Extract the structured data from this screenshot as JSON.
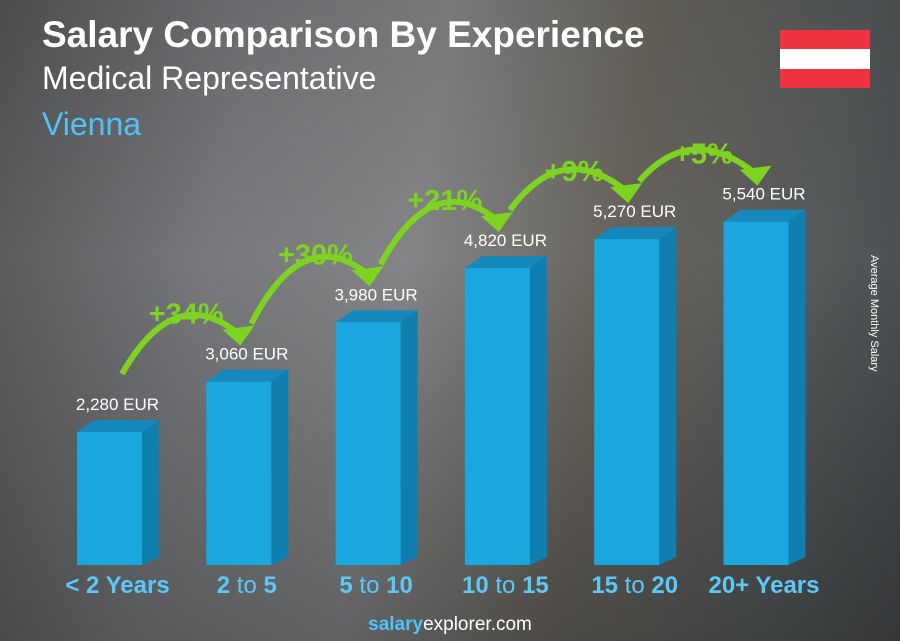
{
  "header": {
    "title": "Salary Comparison By Experience",
    "subtitle": "Medical Representative",
    "city": "Vienna"
  },
  "flag": {
    "colors": [
      "#ef3340",
      "#ffffff",
      "#ef3340"
    ]
  },
  "footer": {
    "brand_bold": "salary",
    "brand_rest": "explorer",
    "tld": ".com"
  },
  "chart_data": {
    "type": "bar",
    "ylabel": "Average Monthly Salary",
    "categories": [
      "< 2 Years",
      "2 to 5",
      "5 to 10",
      "10 to 15",
      "15 to 20",
      "20+ Years"
    ],
    "values": [
      2280,
      3060,
      3980,
      4820,
      5270,
      5540
    ],
    "value_labels": [
      "2,280 EUR",
      "3,060 EUR",
      "3,980 EUR",
      "4,820 EUR",
      "5,270 EUR",
      "5,540 EUR"
    ],
    "increases": [
      "+34%",
      "+30%",
      "+21%",
      "+9%",
      "+5%"
    ],
    "bar_color": "#1aa7e0",
    "increase_color": "#7ed321"
  }
}
